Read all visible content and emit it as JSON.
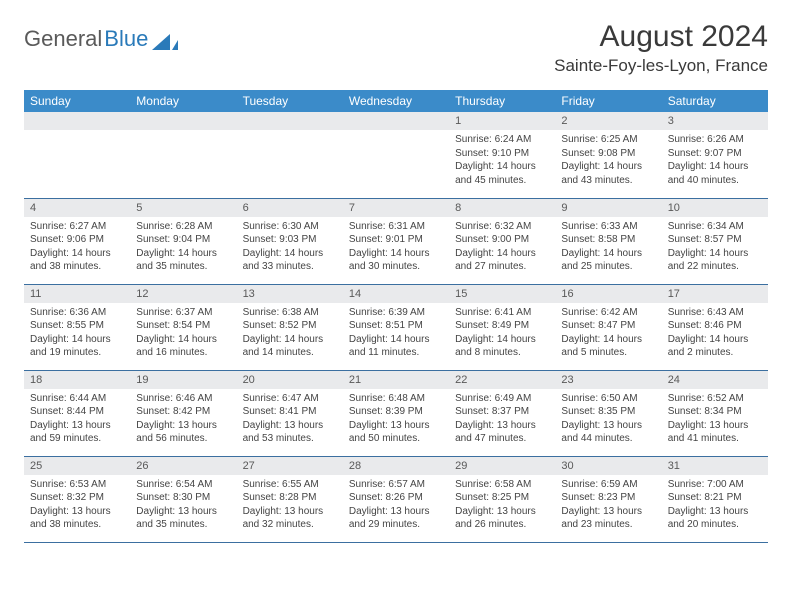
{
  "brand": {
    "part1": "General",
    "part2": "Blue"
  },
  "title": "August 2024",
  "location": "Sainte-Foy-les-Lyon, France",
  "colors": {
    "header_bg": "#3b8bc9",
    "header_text": "#ffffff",
    "daynum_bg": "#e9eaec",
    "daynum_text": "#595959",
    "rule": "#3b6fa0",
    "brand_gray": "#5a5a5a",
    "brand_blue": "#2a7ab9"
  },
  "dow": [
    "Sunday",
    "Monday",
    "Tuesday",
    "Wednesday",
    "Thursday",
    "Friday",
    "Saturday"
  ],
  "weeks": [
    [
      {
        "n": "",
        "sr": "",
        "ss": "",
        "dl": ""
      },
      {
        "n": "",
        "sr": "",
        "ss": "",
        "dl": ""
      },
      {
        "n": "",
        "sr": "",
        "ss": "",
        "dl": ""
      },
      {
        "n": "",
        "sr": "",
        "ss": "",
        "dl": ""
      },
      {
        "n": "1",
        "sr": "6:24 AM",
        "ss": "9:10 PM",
        "dl": "14 hours and 45 minutes."
      },
      {
        "n": "2",
        "sr": "6:25 AM",
        "ss": "9:08 PM",
        "dl": "14 hours and 43 minutes."
      },
      {
        "n": "3",
        "sr": "6:26 AM",
        "ss": "9:07 PM",
        "dl": "14 hours and 40 minutes."
      }
    ],
    [
      {
        "n": "4",
        "sr": "6:27 AM",
        "ss": "9:06 PM",
        "dl": "14 hours and 38 minutes."
      },
      {
        "n": "5",
        "sr": "6:28 AM",
        "ss": "9:04 PM",
        "dl": "14 hours and 35 minutes."
      },
      {
        "n": "6",
        "sr": "6:30 AM",
        "ss": "9:03 PM",
        "dl": "14 hours and 33 minutes."
      },
      {
        "n": "7",
        "sr": "6:31 AM",
        "ss": "9:01 PM",
        "dl": "14 hours and 30 minutes."
      },
      {
        "n": "8",
        "sr": "6:32 AM",
        "ss": "9:00 PM",
        "dl": "14 hours and 27 minutes."
      },
      {
        "n": "9",
        "sr": "6:33 AM",
        "ss": "8:58 PM",
        "dl": "14 hours and 25 minutes."
      },
      {
        "n": "10",
        "sr": "6:34 AM",
        "ss": "8:57 PM",
        "dl": "14 hours and 22 minutes."
      }
    ],
    [
      {
        "n": "11",
        "sr": "6:36 AM",
        "ss": "8:55 PM",
        "dl": "14 hours and 19 minutes."
      },
      {
        "n": "12",
        "sr": "6:37 AM",
        "ss": "8:54 PM",
        "dl": "14 hours and 16 minutes."
      },
      {
        "n": "13",
        "sr": "6:38 AM",
        "ss": "8:52 PM",
        "dl": "14 hours and 14 minutes."
      },
      {
        "n": "14",
        "sr": "6:39 AM",
        "ss": "8:51 PM",
        "dl": "14 hours and 11 minutes."
      },
      {
        "n": "15",
        "sr": "6:41 AM",
        "ss": "8:49 PM",
        "dl": "14 hours and 8 minutes."
      },
      {
        "n": "16",
        "sr": "6:42 AM",
        "ss": "8:47 PM",
        "dl": "14 hours and 5 minutes."
      },
      {
        "n": "17",
        "sr": "6:43 AM",
        "ss": "8:46 PM",
        "dl": "14 hours and 2 minutes."
      }
    ],
    [
      {
        "n": "18",
        "sr": "6:44 AM",
        "ss": "8:44 PM",
        "dl": "13 hours and 59 minutes."
      },
      {
        "n": "19",
        "sr": "6:46 AM",
        "ss": "8:42 PM",
        "dl": "13 hours and 56 minutes."
      },
      {
        "n": "20",
        "sr": "6:47 AM",
        "ss": "8:41 PM",
        "dl": "13 hours and 53 minutes."
      },
      {
        "n": "21",
        "sr": "6:48 AM",
        "ss": "8:39 PM",
        "dl": "13 hours and 50 minutes."
      },
      {
        "n": "22",
        "sr": "6:49 AM",
        "ss": "8:37 PM",
        "dl": "13 hours and 47 minutes."
      },
      {
        "n": "23",
        "sr": "6:50 AM",
        "ss": "8:35 PM",
        "dl": "13 hours and 44 minutes."
      },
      {
        "n": "24",
        "sr": "6:52 AM",
        "ss": "8:34 PM",
        "dl": "13 hours and 41 minutes."
      }
    ],
    [
      {
        "n": "25",
        "sr": "6:53 AM",
        "ss": "8:32 PM",
        "dl": "13 hours and 38 minutes."
      },
      {
        "n": "26",
        "sr": "6:54 AM",
        "ss": "8:30 PM",
        "dl": "13 hours and 35 minutes."
      },
      {
        "n": "27",
        "sr": "6:55 AM",
        "ss": "8:28 PM",
        "dl": "13 hours and 32 minutes."
      },
      {
        "n": "28",
        "sr": "6:57 AM",
        "ss": "8:26 PM",
        "dl": "13 hours and 29 minutes."
      },
      {
        "n": "29",
        "sr": "6:58 AM",
        "ss": "8:25 PM",
        "dl": "13 hours and 26 minutes."
      },
      {
        "n": "30",
        "sr": "6:59 AM",
        "ss": "8:23 PM",
        "dl": "13 hours and 23 minutes."
      },
      {
        "n": "31",
        "sr": "7:00 AM",
        "ss": "8:21 PM",
        "dl": "13 hours and 20 minutes."
      }
    ]
  ],
  "labels": {
    "sunrise": "Sunrise:",
    "sunset": "Sunset:",
    "daylight": "Daylight:"
  }
}
